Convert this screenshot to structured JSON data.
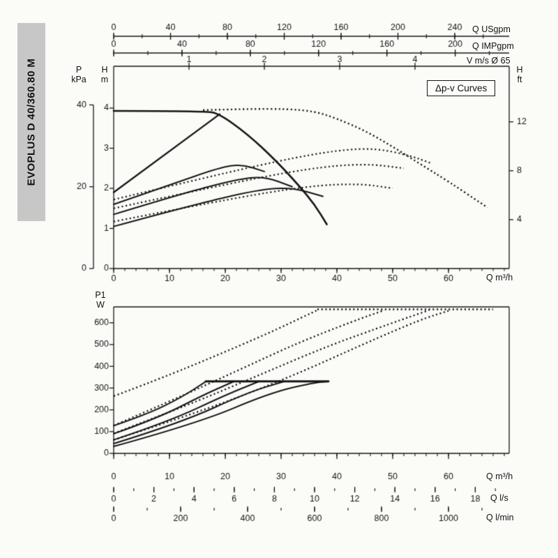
{
  "ink": "#141414",
  "sidebar": {
    "model": "EVOPLUS D 40/360.80 M",
    "bg": "#c7c7c7"
  },
  "unit_labels": {
    "usgpm": "Q USgpm",
    "impgpm": "Q IMPgpm",
    "velocity": "V m/s Ø 65",
    "pressure_line1": "P",
    "pressure_line2": "kPa",
    "head_m_line1": "H",
    "head_m_line2": "m",
    "head_ft_line1": "H",
    "head_ft_line2": "ft",
    "flow_top": "Q m³/h",
    "power_line1": "P1",
    "power_line2": "W",
    "flow_bottom": "Q m³/h",
    "flow_ls": "Q l/s",
    "flow_lmin": "Q l/min"
  },
  "chart_data": [
    {
      "id": "head_vs_flow",
      "type": "line",
      "title": "Δp-v Curves",
      "x_axis": {
        "label": "Q m³/h",
        "min": 0,
        "max": 70.9,
        "major_ticks": [
          0,
          10,
          20,
          30,
          40,
          50,
          60
        ],
        "minor_step": 2
      },
      "y_axis": {
        "label": "H m",
        "min": 0,
        "max": 5.05,
        "major_ticks": [
          0,
          1,
          2,
          3,
          4
        ]
      },
      "aux_axes": {
        "kpa": {
          "label": "P kPa",
          "ticks": [
            0,
            20,
            40
          ],
          "m_per_unit": 0.102
        },
        "ft": {
          "label": "H ft",
          "ticks": [
            4,
            8,
            12
          ],
          "m_per_unit": 0.3048
        },
        "usgpm": {
          "label": "Q USgpm",
          "ticks": [
            0,
            40,
            80,
            120,
            160,
            200,
            240
          ],
          "minor_step": 20,
          "m3h_per_unit": 0.2547
        },
        "impgpm": {
          "label": "Q IMPgpm",
          "ticks": [
            0,
            40,
            80,
            120,
            160,
            200
          ],
          "minor_step": 20,
          "m3h_per_unit": 0.306
        },
        "v_ms": {
          "label": "V m/s Ø 65",
          "ticks": [
            1,
            2,
            3,
            4
          ],
          "m3h_per_unit": 13.5
        }
      },
      "series": [
        {
          "name": "max-speed-single",
          "style": "solid",
          "width": 2.6,
          "points": [
            [
              0,
              3.93
            ],
            [
              16.5,
              3.93
            ],
            [
              19,
              3.85
            ],
            [
              24,
              3.35
            ],
            [
              29,
              2.7
            ],
            [
              33,
              2.1
            ],
            [
              36,
              1.6
            ],
            [
              38.2,
              1.1
            ]
          ]
        },
        {
          "name": "dpv-setting-1",
          "style": "solid",
          "width": 2.3,
          "points": [
            [
              0,
              1.9
            ],
            [
              19,
              3.85
            ]
          ]
        },
        {
          "name": "dpv-setting-2",
          "style": "solid",
          "width": 2.0,
          "points": [
            [
              0,
              1.6
            ],
            [
              10,
              2.08
            ],
            [
              19,
              2.52
            ],
            [
              23,
              2.6
            ],
            [
              27,
              2.42
            ]
          ]
        },
        {
          "name": "dpv-setting-3",
          "style": "solid",
          "width": 2.0,
          "points": [
            [
              0,
              1.35
            ],
            [
              12,
              1.86
            ],
            [
              22,
              2.22
            ],
            [
              27,
              2.3
            ],
            [
              32,
              2.04
            ]
          ]
        },
        {
          "name": "dpv-setting-4",
          "style": "solid",
          "width": 2.0,
          "points": [
            [
              0,
              1.05
            ],
            [
              14,
              1.58
            ],
            [
              26,
              1.97
            ],
            [
              32,
              2.02
            ],
            [
              37.5,
              1.8
            ]
          ]
        },
        {
          "name": "max-speed-parallel",
          "style": "dotted",
          "width": 2.4,
          "points": [
            [
              16,
              3.95
            ],
            [
              24,
              3.98
            ],
            [
              31,
              3.98
            ],
            [
              36,
              3.92
            ],
            [
              40,
              3.74
            ],
            [
              45,
              3.44
            ],
            [
              50,
              3.04
            ],
            [
              55,
              2.6
            ],
            [
              60,
              2.17
            ],
            [
              67,
              1.52
            ]
          ]
        },
        {
          "name": "dpv-parallel-1",
          "style": "dotted",
          "width": 2.2,
          "points": [
            [
              0,
              1.72
            ],
            [
              15,
              2.22
            ],
            [
              30,
              2.7
            ],
            [
              40,
              2.95
            ],
            [
              47,
              3.0
            ],
            [
              53,
              2.82
            ],
            [
              57,
              2.62
            ]
          ]
        },
        {
          "name": "dpv-parallel-2",
          "style": "dotted",
          "width": 2.2,
          "points": [
            [
              0,
              1.5
            ],
            [
              20,
              2.1
            ],
            [
              35,
              2.5
            ],
            [
              45,
              2.62
            ],
            [
              52,
              2.5
            ]
          ]
        },
        {
          "name": "dpv-parallel-3",
          "style": "dotted",
          "width": 2.2,
          "points": [
            [
              0,
              1.17
            ],
            [
              20,
              1.72
            ],
            [
              35,
              2.06
            ],
            [
              44,
              2.12
            ],
            [
              50,
              2.0
            ]
          ]
        }
      ]
    },
    {
      "id": "power_vs_flow",
      "type": "line",
      "title": "",
      "x_axis": {
        "label": "Q m³/h",
        "min": 0,
        "max": 70.9,
        "major_ticks": [
          0,
          10,
          20,
          30,
          40,
          50,
          60
        ],
        "minor_step": 2
      },
      "y_axis": {
        "label": "P1 W",
        "min": 0,
        "max": 673,
        "major_ticks": [
          0,
          100,
          200,
          300,
          400,
          500,
          600
        ]
      },
      "aux_axes": {
        "ls": {
          "label": "Q l/s",
          "ticks": [
            0,
            2,
            4,
            6,
            8,
            10,
            12,
            14,
            16,
            18
          ],
          "minor_step": 1,
          "m3h_per_unit": 3.6
        },
        "lmin": {
          "label": "Q l/min",
          "ticks": [
            0,
            200,
            400,
            600,
            800,
            1000
          ],
          "minor_step": 100,
          "m3h_per_unit": 0.06
        }
      },
      "series": [
        {
          "name": "power-limit-single",
          "style": "solid",
          "width": 2.8,
          "points": [
            [
              16.5,
              331
            ],
            [
              38.5,
              331
            ]
          ]
        },
        {
          "name": "power-curve-1",
          "style": "solid",
          "width": 2.0,
          "points": [
            [
              0,
              127
            ],
            [
              6,
              180
            ],
            [
              12,
              255
            ],
            [
              16.5,
              330
            ]
          ]
        },
        {
          "name": "power-curve-2",
          "style": "solid",
          "width": 2.0,
          "points": [
            [
              0,
              90
            ],
            [
              8,
              163
            ],
            [
              16,
              268
            ],
            [
              21.5,
              330
            ]
          ]
        },
        {
          "name": "power-curve-3",
          "style": "solid",
          "width": 2.0,
          "points": [
            [
              0,
              62
            ],
            [
              10,
              148
            ],
            [
              20,
              268
            ],
            [
              26,
              330
            ]
          ]
        },
        {
          "name": "power-curve-4",
          "style": "solid",
          "width": 2.0,
          "points": [
            [
              0,
              45
            ],
            [
              12,
              140
            ],
            [
              24,
              280
            ],
            [
              30.5,
              330
            ]
          ]
        },
        {
          "name": "power-curve-5",
          "style": "solid",
          "width": 2.0,
          "points": [
            [
              0,
              32
            ],
            [
              15,
              138
            ],
            [
              28,
              278
            ],
            [
              36,
              326
            ],
            [
              38.5,
              330
            ]
          ]
        },
        {
          "name": "power-parallel-1",
          "style": "dotted",
          "width": 2.3,
          "points": [
            [
              0,
              263
            ],
            [
              8,
              340
            ],
            [
              18,
              445
            ],
            [
              28,
              555
            ],
            [
              34,
              628
            ],
            [
              36.5,
              658
            ]
          ]
        },
        {
          "name": "power-parallel-2",
          "style": "dotted",
          "width": 2.3,
          "points": [
            [
              0,
              128
            ],
            [
              10,
              238
            ],
            [
              22,
              378
            ],
            [
              33,
              508
            ],
            [
              43,
              608
            ],
            [
              48.5,
              658
            ]
          ]
        },
        {
          "name": "power-parallel-3",
          "style": "dotted",
          "width": 2.3,
          "points": [
            [
              0,
              92
            ],
            [
              12,
              208
            ],
            [
              25,
              348
            ],
            [
              38,
              490
            ],
            [
              50,
              600
            ],
            [
              56.5,
              658
            ]
          ]
        },
        {
          "name": "power-parallel-4",
          "style": "dotted",
          "width": 2.3,
          "points": [
            [
              0,
              62
            ],
            [
              16,
              195
            ],
            [
              32,
              355
            ],
            [
              45,
              505
            ],
            [
              55,
              615
            ],
            [
              60,
              655
            ]
          ]
        },
        {
          "name": "power-limit-parallel",
          "style": "dotted",
          "width": 2.4,
          "points": [
            [
              36.5,
              662
            ],
            [
              68,
              662
            ]
          ]
        }
      ]
    }
  ]
}
